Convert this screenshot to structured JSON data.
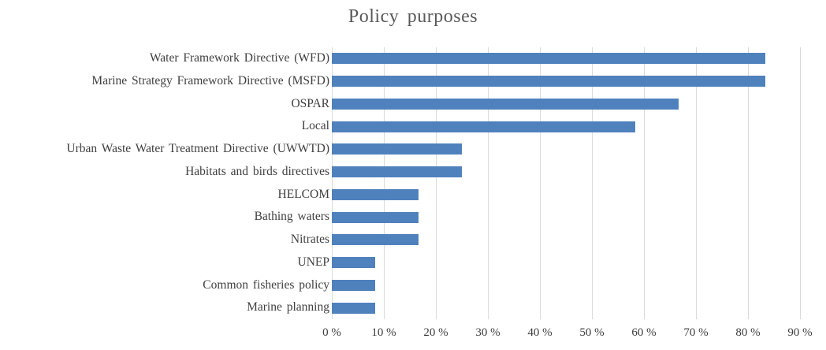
{
  "chart_data": {
    "type": "bar",
    "orientation": "horizontal",
    "title": "Policy purposes",
    "categories": [
      "Water Framework Directive (WFD)",
      "Marine Strategy Framework Directive (MSFD)",
      "OSPAR",
      "Local",
      "Urban Waste Water Treatment Directive (UWWTD)",
      "Habitats and birds directives",
      "HELCOM",
      "Bathing waters",
      "Nitrates",
      "UNEP",
      "Common fisheries policy",
      "Marine planning"
    ],
    "values": [
      83.3,
      83.3,
      66.7,
      58.3,
      25,
      25,
      16.7,
      16.7,
      16.7,
      8.3,
      8.3,
      8.3
    ],
    "xlabel": "",
    "ylabel": "",
    "xlim": [
      0,
      90
    ],
    "x_tick_labels": [
      "0 %",
      "10 %",
      "20 %",
      "30 %",
      "40 %",
      "50 %",
      "60 %",
      "70 %",
      "80 %",
      "90 %"
    ],
    "grid": true,
    "legend": "none",
    "colors": {
      "bar": "#4f81bd",
      "gridline": "#d9d9d9",
      "title_text": "#595959",
      "axis_text": "#3f3f3f",
      "background": "#ffffff"
    }
  }
}
